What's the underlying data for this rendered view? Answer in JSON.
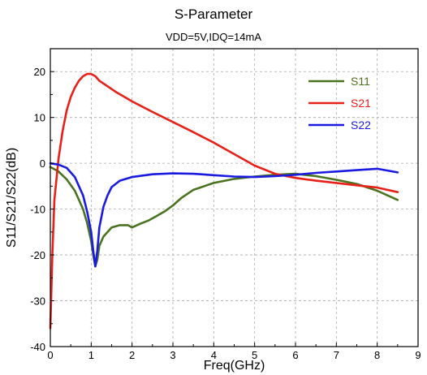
{
  "chart_data": {
    "type": "line",
    "title": "S-Parameter",
    "subtitle": "VDD=5V,IDQ=14mA",
    "xlabel": "Freq(GHz)",
    "ylabel": "S11/S21/S22(dB)",
    "xlim": [
      0,
      9
    ],
    "ylim": [
      -40,
      25
    ],
    "xticks": [
      0,
      1,
      2,
      3,
      4,
      5,
      6,
      7,
      8,
      9
    ],
    "yticks": [
      -40,
      -30,
      -20,
      -10,
      0,
      10,
      20
    ],
    "grid": true,
    "legend_position": "top-right",
    "series": [
      {
        "name": "S11",
        "color": "#4a7320",
        "x": [
          0,
          0.2,
          0.4,
          0.6,
          0.8,
          0.9,
          1.0,
          1.05,
          1.1,
          1.15,
          1.2,
          1.3,
          1.5,
          1.7,
          1.9,
          2.0,
          2.2,
          2.4,
          2.6,
          2.8,
          3.0,
          3.2,
          3.5,
          4.0,
          4.5,
          5.0,
          5.5,
          6.0,
          6.5,
          7.0,
          7.5,
          8.0,
          8.5
        ],
        "y": [
          -0.8,
          -1.8,
          -3.5,
          -6,
          -10,
          -13,
          -17,
          -20,
          -22.5,
          -21,
          -18,
          -16,
          -14,
          -13.5,
          -13.5,
          -14,
          -13.2,
          -12.5,
          -11.5,
          -10.5,
          -9.2,
          -7.6,
          -5.8,
          -4.3,
          -3.4,
          -2.9,
          -2.5,
          -2.3,
          -2.8,
          -3.6,
          -4.5,
          -6.0,
          -8.0
        ]
      },
      {
        "name": "S21",
        "color": "#e8201a",
        "x": [
          0,
          0.05,
          0.1,
          0.2,
          0.3,
          0.4,
          0.5,
          0.6,
          0.7,
          0.8,
          0.9,
          1.0,
          1.1,
          1.2,
          1.4,
          1.6,
          2.0,
          2.5,
          3.0,
          3.5,
          4.0,
          4.5,
          5.0,
          5.5,
          6.0,
          6.5,
          7.0,
          7.5,
          8.0,
          8.5
        ],
        "y": [
          -36,
          -20,
          -8,
          1,
          7,
          11.5,
          14.5,
          16.5,
          18,
          19,
          19.5,
          19.5,
          19,
          18,
          16.8,
          15.6,
          13.5,
          11.2,
          9,
          6.8,
          4.5,
          2,
          -0.5,
          -2.3,
          -3.2,
          -3.8,
          -4.3,
          -4.8,
          -5.3,
          -6.3
        ]
      },
      {
        "name": "S22",
        "color": "#1a1ae0",
        "x": [
          0,
          0.2,
          0.4,
          0.6,
          0.8,
          0.9,
          1.0,
          1.05,
          1.1,
          1.15,
          1.2,
          1.3,
          1.4,
          1.5,
          1.7,
          2.0,
          2.5,
          3.0,
          3.5,
          4.0,
          4.5,
          5.0,
          5.5,
          6.0,
          6.5,
          7.0,
          7.5,
          8.0,
          8.5
        ],
        "y": [
          0,
          -0.3,
          -1,
          -3,
          -7,
          -10.5,
          -15,
          -19,
          -22.5,
          -19,
          -14,
          -9.5,
          -7,
          -5.2,
          -3.8,
          -3.0,
          -2.4,
          -2.2,
          -2.3,
          -2.6,
          -2.9,
          -3.0,
          -2.8,
          -2.5,
          -2.1,
          -1.8,
          -1.5,
          -1.2,
          -2.0
        ]
      }
    ]
  }
}
